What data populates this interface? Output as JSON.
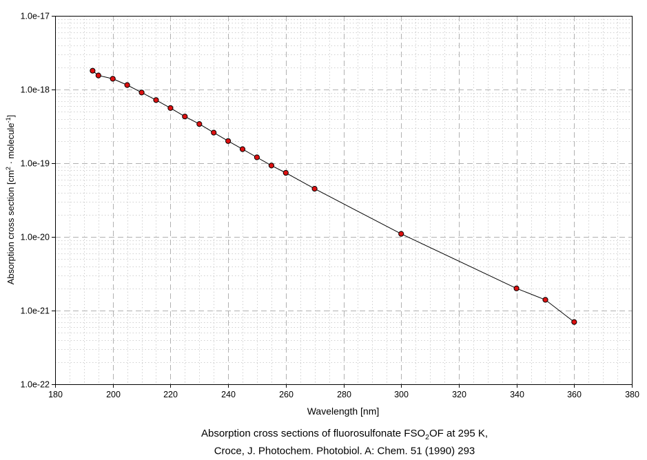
{
  "figure": {
    "caption_line1_parts": [
      {
        "t": "Absorption cross sections of fluorosulfonate FSO"
      },
      {
        "t": "2",
        "s": "sub"
      },
      {
        "t": "OF at 295 K,"
      }
    ],
    "caption_line2": "Croce, J. Photochem. Photobiol. A: Chem. 51 (1990) 293"
  },
  "chart_data": {
    "type": "line",
    "markers": true,
    "series_name": "FSO2OF absorption cross section at 295 K",
    "xlabel": "Wavelength [nm]",
    "ylabel_parts": [
      {
        "t": "Absorption cross section [cm"
      },
      {
        "t": "2",
        "s": "sup"
      },
      {
        "t": " · molecule"
      },
      {
        "t": "-1",
        "s": "sup"
      },
      {
        "t": "]"
      }
    ],
    "x_scale": "linear",
    "y_scale": "log",
    "xlim": [
      180,
      380
    ],
    "ylim": [
      1e-22,
      1e-17
    ],
    "grid": "on",
    "legend": "none",
    "x_major_ticks": [
      180,
      200,
      220,
      240,
      260,
      280,
      300,
      320,
      340,
      360,
      380
    ],
    "x_major_step": 20,
    "x_minor_step": 5,
    "y_tick_labels": [
      "1.0e-17",
      "1.0e-18",
      "1.0e-19",
      "1.0e-20",
      "1.0e-21",
      "1.0e-22"
    ],
    "y_tick_values": [
      1e-17,
      1e-18,
      1e-19,
      1e-20,
      1e-21,
      1e-22
    ],
    "x": [
      193,
      195,
      200,
      205,
      210,
      215,
      220,
      225,
      230,
      235,
      240,
      245,
      250,
      255,
      260,
      270,
      300,
      340,
      350,
      360
    ],
    "y": [
      1.8e-18,
      1.55e-18,
      1.4e-18,
      1.15e-18,
      9.1e-19,
      7.2e-19,
      5.6e-19,
      4.3e-19,
      3.4e-19,
      2.6e-19,
      2e-19,
      1.55e-19,
      1.2e-19,
      9.3e-20,
      7.4e-20,
      4.5e-20,
      1.1e-20,
      2e-21,
      1.4e-21,
      7e-22
    ],
    "colors": {
      "marker_fill": "#dd1111",
      "marker_stroke": "#000000",
      "line": "#000000",
      "grid_major": "#b0b0b0",
      "grid_minor": "#cfcfcf",
      "frame": "#000000",
      "background": "#ffffff",
      "text": "#000000"
    }
  }
}
